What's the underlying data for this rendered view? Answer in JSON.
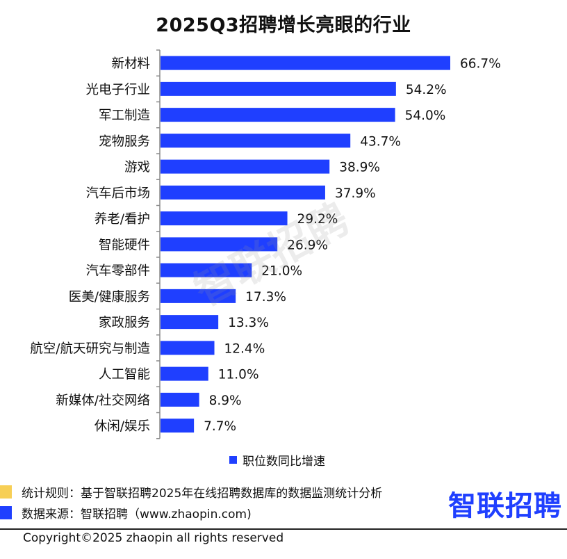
{
  "chart_data": {
    "type": "bar",
    "orientation": "horizontal",
    "title": "2025Q3招聘增长亮眼的行业",
    "categories": [
      "新材料",
      "光电子行业",
      "军工制造",
      "宠物服务",
      "游戏",
      "汽车后市场",
      "养老/看护",
      "智能硬件",
      "汽车零部件",
      "医美/健康服务",
      "家政服务",
      "航空/航天研究与制造",
      "人工智能",
      "新媒体/社交网络",
      "休闲/娱乐"
    ],
    "series": [
      {
        "name": "职位数同比增速",
        "values": [
          66.7,
          54.2,
          54.0,
          43.7,
          38.9,
          37.9,
          29.2,
          26.9,
          21.0,
          17.3,
          13.3,
          12.4,
          11.0,
          8.9,
          7.7
        ]
      }
    ],
    "data_labels": [
      "66.7%",
      "54.2%",
      "54.0%",
      "43.7%",
      "38.9%",
      "37.9%",
      "29.2%",
      "26.9%",
      "21.0%",
      "17.3%",
      "13.3%",
      "12.4%",
      "11.0%",
      "8.9%",
      "7.7%"
    ],
    "xlim": [
      0,
      66.7
    ],
    "legend_position": "bottom",
    "grid": false,
    "bar_color": "#1f3fff"
  },
  "notes": [
    {
      "text": "统计规则：基于智联招聘2025年在线招聘数据库的数据监测统计分析",
      "color": "#f7cf55"
    },
    {
      "text": "数据来源：智联招聘（www.zhaopin.com)",
      "color": "#1f3fff"
    }
  ],
  "logo": {
    "text": "智联招聘",
    "color": "#1f3fff",
    "dot_color": "#f7cf55"
  },
  "watermark": "智联招聘",
  "copyright": "Copyright©2025 zhaopin all rights reserved"
}
